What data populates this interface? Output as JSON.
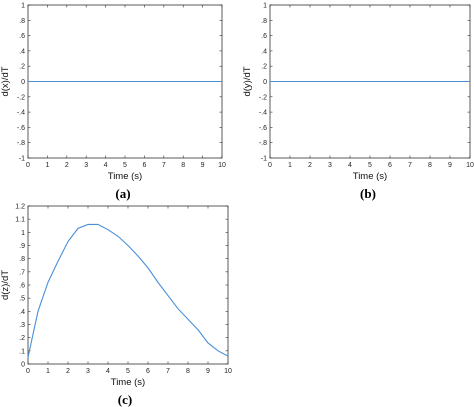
{
  "chart_data": [
    {
      "type": "line",
      "panel_label": "(a)",
      "xlabel": "Time (s)",
      "ylabel": "d(x)/dT",
      "xlim": [
        0,
        10
      ],
      "ylim": [
        -1,
        1
      ],
      "xticks": [
        0,
        1,
        2,
        3,
        4,
        5,
        6,
        7,
        8,
        9,
        10
      ],
      "yticks": [
        -1,
        -0.8,
        -0.6,
        -0.4,
        -0.2,
        0,
        0.2,
        0.4,
        0.6,
        0.8,
        1
      ],
      "grid": false,
      "color": "#4a90d9",
      "series": [
        {
          "x": [
            0,
            1,
            2,
            3,
            4,
            5,
            6,
            7,
            8,
            9,
            10
          ],
          "values": [
            0,
            0,
            0,
            0,
            0,
            0,
            0,
            0,
            0,
            0,
            0
          ]
        }
      ]
    },
    {
      "type": "line",
      "panel_label": "(b)",
      "xlabel": "Time (s)",
      "ylabel": "d(y)/dT",
      "xlim": [
        0,
        10
      ],
      "ylim": [
        -1,
        1
      ],
      "xticks": [
        0,
        1,
        2,
        3,
        4,
        5,
        6,
        7,
        8,
        9,
        10
      ],
      "yticks": [
        -1,
        -0.8,
        -0.6,
        -0.4,
        -0.2,
        0,
        0.2,
        0.4,
        0.6,
        0.8,
        1
      ],
      "grid": false,
      "color": "#4a90d9",
      "series": [
        {
          "x": [
            0,
            1,
            2,
            3,
            4,
            5,
            6,
            7,
            8,
            9,
            10
          ],
          "values": [
            0,
            0,
            0,
            0,
            0,
            0,
            0,
            0,
            0,
            0,
            0
          ]
        }
      ]
    },
    {
      "type": "line",
      "panel_label": "(c)",
      "xlabel": "Time (s)",
      "ylabel": "d(z)/dT",
      "xlim": [
        0,
        10
      ],
      "ylim": [
        0,
        1.2
      ],
      "xticks": [
        0,
        1,
        2,
        3,
        4,
        5,
        6,
        7,
        8,
        9,
        10
      ],
      "yticks": [
        0,
        0.1,
        0.2,
        0.3,
        0.4,
        0.5,
        0.6,
        0.7,
        0.8,
        0.9,
        1,
        1.1,
        1.2
      ],
      "grid": false,
      "color": "#4a90d9",
      "series": [
        {
          "x": [
            0,
            0.5,
            1,
            1.5,
            2,
            2.5,
            3,
            3.5,
            4,
            4.5,
            5,
            5.5,
            6,
            6.5,
            7,
            7.5,
            8,
            8.5,
            9,
            9.5,
            10
          ],
          "values": [
            0.05,
            0.4,
            0.62,
            0.78,
            0.93,
            1.03,
            1.06,
            1.06,
            1.02,
            0.97,
            0.9,
            0.82,
            0.73,
            0.62,
            0.52,
            0.42,
            0.34,
            0.26,
            0.16,
            0.1,
            0.06
          ]
        }
      ]
    }
  ]
}
